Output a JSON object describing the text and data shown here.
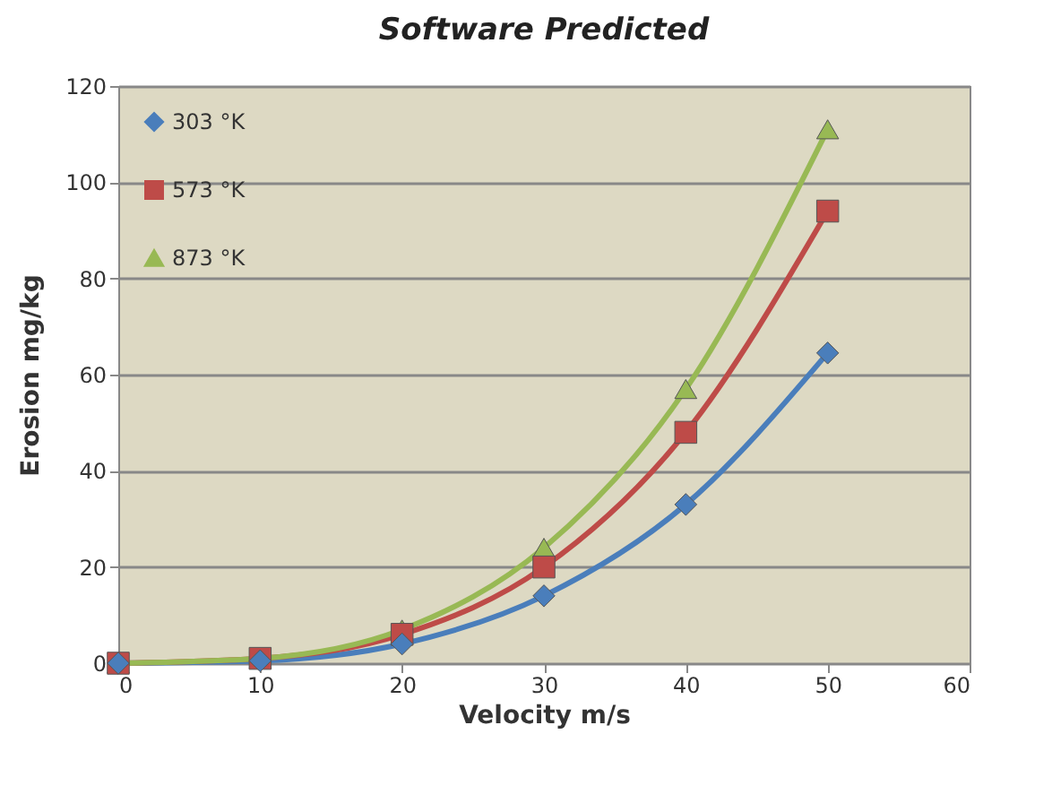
{
  "chart_data": {
    "type": "line",
    "title": "Software Predicted",
    "xlabel": "Velocity m/s",
    "ylabel": "Erosion mg/kg",
    "x": [
      0,
      10,
      20,
      30,
      40,
      50
    ],
    "series": [
      {
        "name": "303 °K",
        "color": "#4a7ebb",
        "marker": "diamond",
        "values": [
          0,
          0.5,
          4,
          14,
          33,
          64.5
        ]
      },
      {
        "name": "573 °K",
        "color": "#be4b48",
        "marker": "square",
        "values": [
          0,
          1,
          6,
          20,
          48,
          94
        ]
      },
      {
        "name": "873 °K",
        "color": "#98b954",
        "marker": "triangle",
        "values": [
          0,
          1,
          7,
          24,
          57,
          111
        ]
      }
    ],
    "xlim": [
      0,
      60
    ],
    "xticks": [
      0,
      10,
      20,
      30,
      40,
      50,
      60
    ],
    "ylim": [
      0,
      120
    ],
    "yticks": [
      0,
      20,
      40,
      60,
      80,
      100,
      120
    ],
    "grid": "y",
    "legend": "top left"
  }
}
